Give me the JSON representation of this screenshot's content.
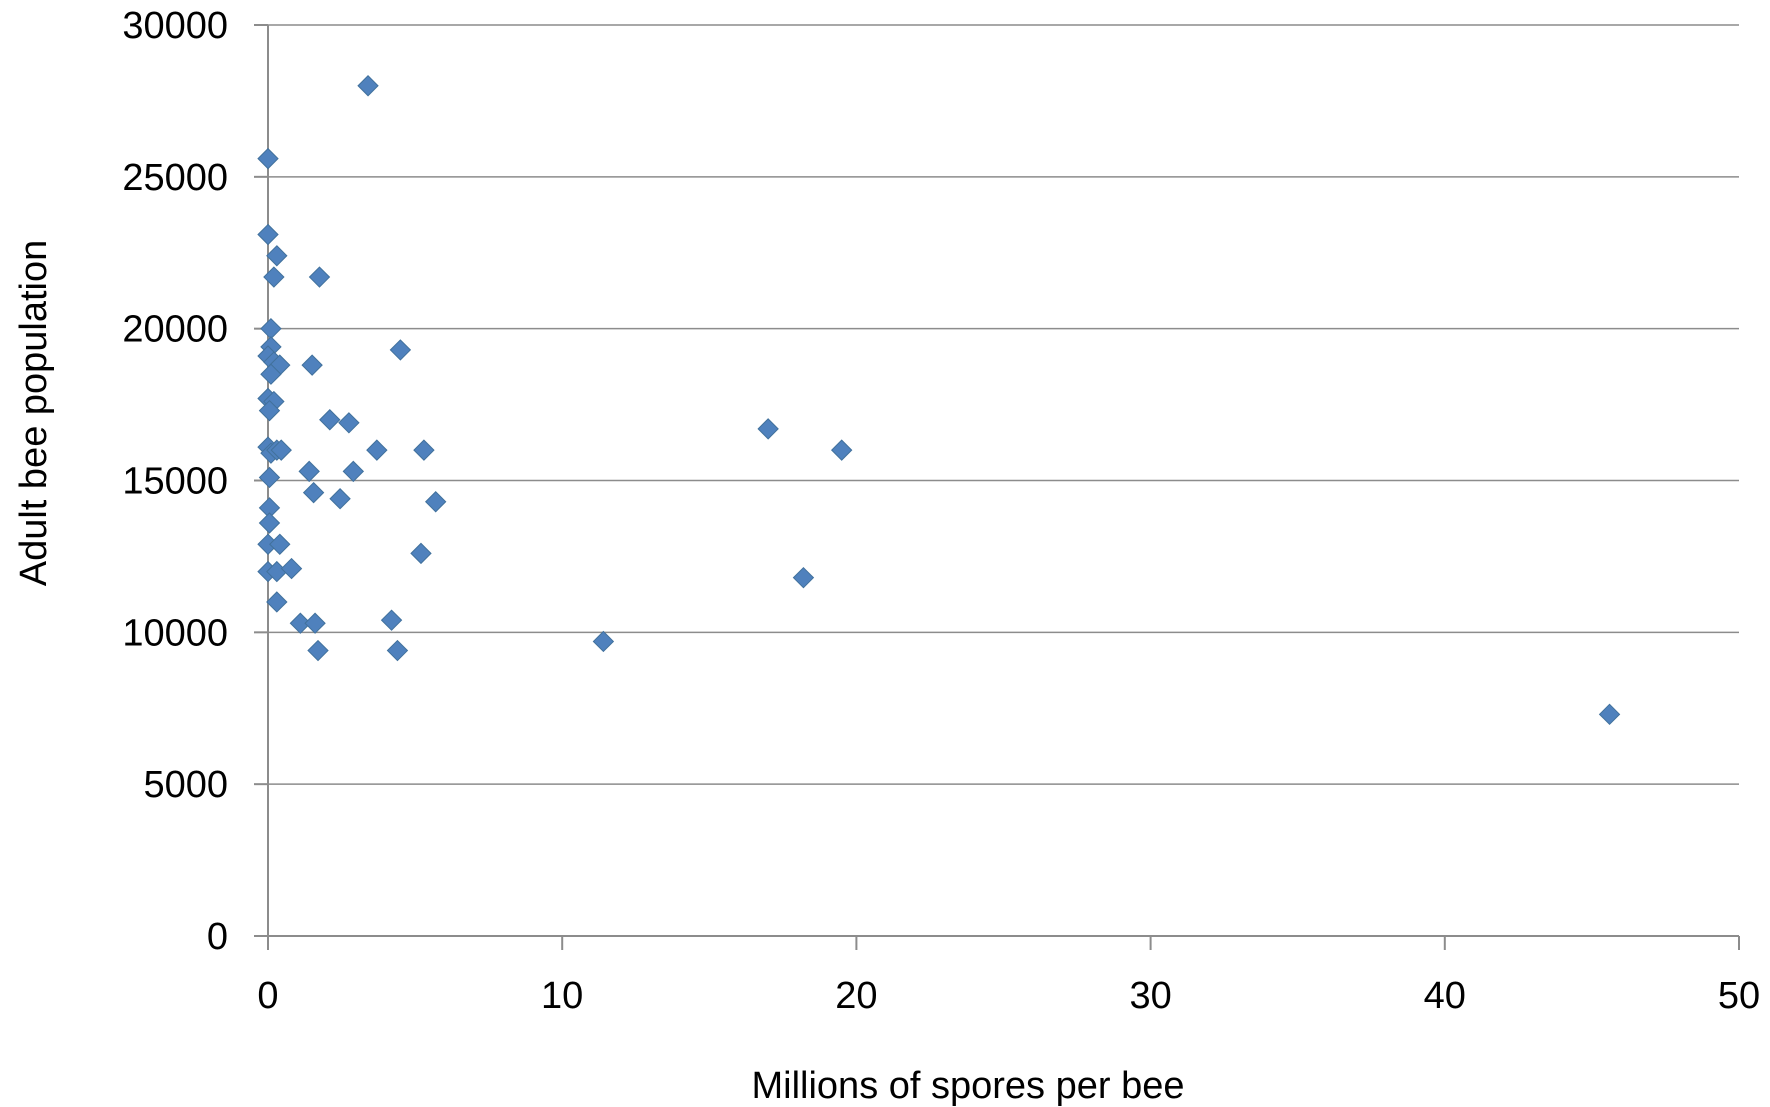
{
  "chart_data": {
    "type": "scatter",
    "title": "",
    "xlabel": "Millions of spores per bee",
    "ylabel": "Adult  bee population",
    "xlim": [
      0,
      50
    ],
    "ylim": [
      0,
      30000
    ],
    "xticks": [
      0,
      10,
      20,
      30,
      40,
      50
    ],
    "yticks": [
      0,
      5000,
      10000,
      15000,
      20000,
      25000,
      30000
    ],
    "xtick_labels": [
      "0",
      "10",
      "20",
      "30",
      "40",
      "50"
    ],
    "ytick_labels": [
      "0",
      "5000",
      "10000",
      "15000",
      "20000",
      "25000",
      "30000"
    ],
    "grid": "horizontal",
    "legend": "none",
    "marker": "diamond",
    "marker_color": "#4f81bd",
    "series": [
      {
        "points": [
          [
            3.4,
            28000
          ],
          [
            0.0,
            25600
          ],
          [
            0.0,
            23100
          ],
          [
            0.3,
            22400
          ],
          [
            0.2,
            21700
          ],
          [
            1.75,
            21700
          ],
          [
            0.1,
            20000
          ],
          [
            0.1,
            19400
          ],
          [
            0.0,
            19100
          ],
          [
            0.2,
            18900
          ],
          [
            0.4,
            18800
          ],
          [
            0.1,
            18500
          ],
          [
            1.5,
            18800
          ],
          [
            4.5,
            19300
          ],
          [
            0.0,
            17700
          ],
          [
            0.2,
            17600
          ],
          [
            0.05,
            17300
          ],
          [
            2.1,
            17000
          ],
          [
            2.75,
            16900
          ],
          [
            0.0,
            16100
          ],
          [
            0.1,
            15900
          ],
          [
            0.3,
            16000
          ],
          [
            0.45,
            16000
          ],
          [
            3.7,
            16000
          ],
          [
            5.3,
            16000
          ],
          [
            0.05,
            15100
          ],
          [
            1.4,
            15300
          ],
          [
            2.9,
            15300
          ],
          [
            1.55,
            14600
          ],
          [
            2.45,
            14400
          ],
          [
            5.7,
            14300
          ],
          [
            0.05,
            14100
          ],
          [
            0.05,
            13600
          ],
          [
            0.0,
            12900
          ],
          [
            0.4,
            12900
          ],
          [
            5.2,
            12600
          ],
          [
            0.0,
            12000
          ],
          [
            0.3,
            12000
          ],
          [
            0.8,
            12100
          ],
          [
            0.3,
            11000
          ],
          [
            1.1,
            10300
          ],
          [
            1.6,
            10300
          ],
          [
            4.2,
            10400
          ],
          [
            1.7,
            9400
          ],
          [
            4.4,
            9400
          ],
          [
            11.4,
            9700
          ],
          [
            17.0,
            16700
          ],
          [
            19.5,
            16000
          ],
          [
            18.2,
            11800
          ],
          [
            45.6,
            7300
          ]
        ]
      }
    ]
  }
}
